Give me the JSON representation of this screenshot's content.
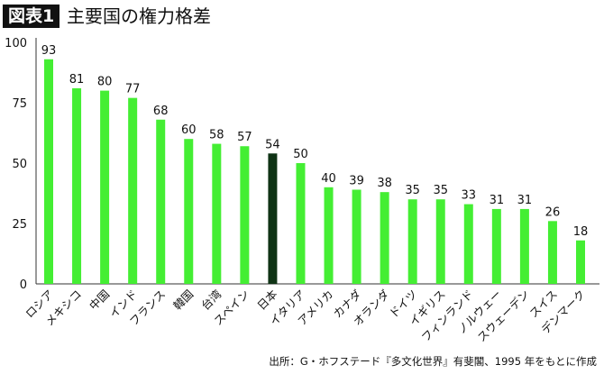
{
  "header": {
    "badge": "図表1",
    "title": "主要国の権力格差"
  },
  "source": "出所：G・ホフステード『多文化世界』有斐閣、1995 年をもとに作成",
  "chart_data": {
    "type": "bar",
    "title": "主要国の権力格差",
    "categories": [
      "ロシア",
      "メキシコ",
      "中国",
      "インド",
      "フランス",
      "韓国",
      "台湾",
      "スペイン",
      "日本",
      "イタリア",
      "アメリカ",
      "カナダ",
      "オランダ",
      "ドイツ",
      "イギリス",
      "フィンランド",
      "ノルウェー",
      "スウェーデン",
      "スイス",
      "デンマーク"
    ],
    "values": [
      93,
      81,
      80,
      77,
      68,
      60,
      58,
      57,
      54,
      50,
      40,
      39,
      38,
      35,
      35,
      33,
      31,
      31,
      26,
      18
    ],
    "highlight": "日本",
    "yticks": [
      0,
      25,
      50,
      75,
      100
    ],
    "ylim": [
      0,
      100
    ],
    "grid": false,
    "colors": {
      "bar": "#44ee33",
      "highlight": "#0f3315"
    }
  }
}
